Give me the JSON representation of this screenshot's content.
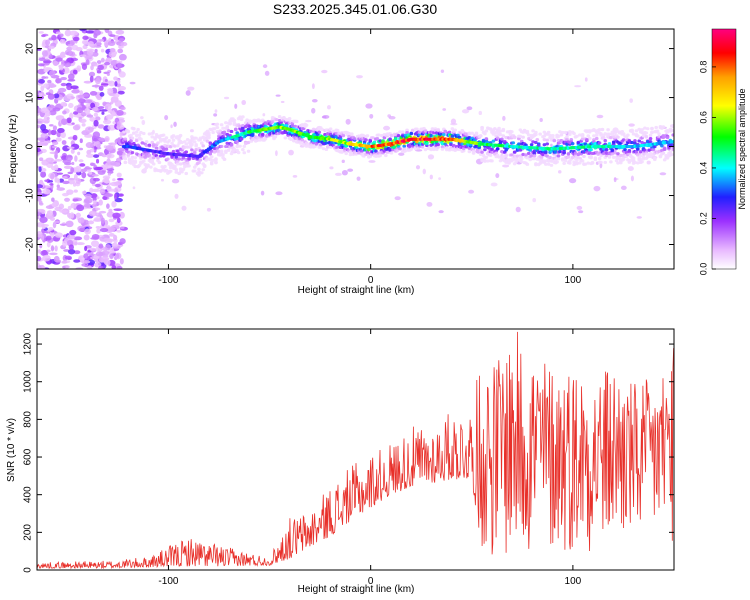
{
  "chart_data": [
    {
      "type": "heatmap",
      "title": "S233.2025.345.01.06.G30",
      "xlabel": "Height of straight line (km)",
      "ylabel": "Frequency (Hz)",
      "xlim": [
        -165,
        150
      ],
      "ylim": [
        -25,
        24
      ],
      "xticks": [
        -100,
        0,
        100
      ],
      "yticks": [
        20,
        10,
        0,
        -10,
        -20
      ],
      "colorbar": {
        "label": "Normalized spectral amplitude",
        "range": [
          0,
          0.95
        ],
        "ticks": [
          "0.0",
          "0.2",
          "0.4",
          "0.6",
          "0.8"
        ],
        "tick_values": [
          0.0,
          0.2,
          0.4,
          0.6,
          0.8
        ],
        "colors": [
          "#ffffff",
          "#e8b8ff",
          "#9b30ff",
          "#2020ff",
          "#00ffff",
          "#00ff00",
          "#ffff00",
          "#ffa000",
          "#ff0000",
          "#ff0080"
        ]
      },
      "ridge": {
        "x": [
          -120,
          -100,
          -85,
          -75,
          -60,
          -45,
          -40,
          -30,
          -20,
          -10,
          0,
          10,
          20,
          40,
          55,
          70,
          90,
          110,
          130,
          150
        ],
        "freq": [
          0,
          -1.5,
          -2,
          1,
          3,
          4,
          3.5,
          2,
          1.5,
          0.5,
          0,
          0.5,
          1.5,
          1.5,
          0.5,
          0,
          -0.5,
          0,
          0,
          1
        ],
        "peak_amplitude": [
          0.3,
          0.25,
          0.25,
          0.35,
          0.5,
          0.6,
          0.6,
          0.55,
          0.6,
          0.65,
          0.8,
          0.85,
          0.9,
          0.85,
          0.5,
          0.45,
          0.45,
          0.45,
          0.4,
          0.35
        ]
      }
    },
    {
      "type": "line",
      "xlabel": "Height of straight line (km)",
      "ylabel": "SNR (10 * v/v)",
      "xlim": [
        -165,
        150
      ],
      "ylim": [
        0,
        1280
      ],
      "xticks": [
        -100,
        0,
        100
      ],
      "yticks": [
        0,
        200,
        400,
        600,
        800,
        1000,
        1200
      ],
      "series": [
        {
          "name": "SNR",
          "color": "#e8302a",
          "envelope_x": [
            -165,
            -130,
            -110,
            -90,
            -70,
            -50,
            -40,
            -30,
            -20,
            -10,
            0,
            10,
            20,
            30,
            40,
            50,
            55,
            60,
            70,
            80,
            90,
            100,
            110,
            120,
            130,
            140,
            150
          ],
          "envelope_low": [
            10,
            10,
            15,
            20,
            20,
            25,
            60,
            120,
            180,
            260,
            330,
            400,
            440,
            460,
            480,
            480,
            100,
            60,
            50,
            60,
            80,
            80,
            100,
            120,
            150,
            150,
            150
          ],
          "envelope_high": [
            40,
            50,
            70,
            180,
            120,
            70,
            280,
            320,
            450,
            550,
            620,
            680,
            760,
            780,
            850,
            880,
            1150,
            1100,
            1290,
            1200,
            1100,
            1100,
            1050,
            1100,
            1000,
            1020,
            1200
          ]
        }
      ]
    }
  ]
}
